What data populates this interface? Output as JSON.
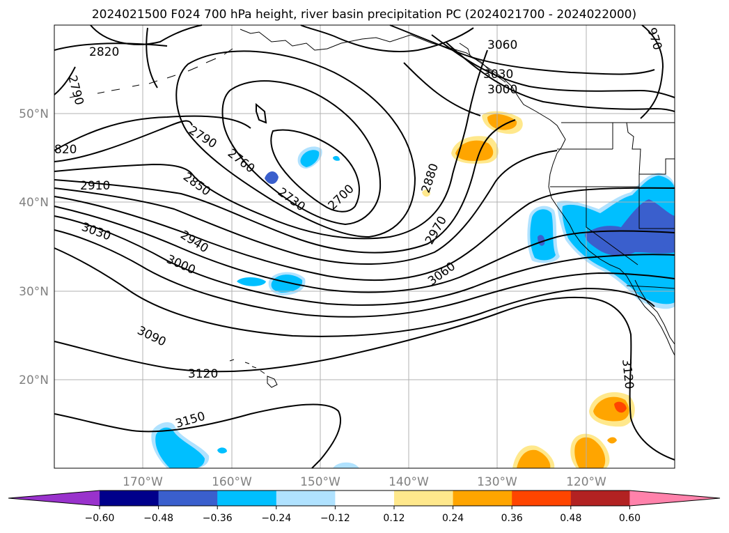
{
  "title": "2024021500 F024 700 hPa height, river basin precipitation PC (2024021700 - 2024022000)",
  "lat_labels": [
    "50°N",
    "40°N",
    "30°N",
    "20°N"
  ],
  "lon_labels": [
    "170°W",
    "160°W",
    "150°W",
    "140°W",
    "130°W",
    "120°W"
  ],
  "contour_labels": [
    "2820",
    "2790",
    "820",
    "2910",
    "3030",
    "2790",
    "2760",
    "2850",
    "2730",
    "2700",
    "2880",
    "2970",
    "2940",
    "3000",
    "3060",
    "3090",
    "3120",
    "3150",
    "3060",
    "3030",
    "3000",
    "970",
    "3120"
  ],
  "colorbar": {
    "tick_labels": [
      "−0.60",
      "−0.48",
      "−0.36",
      "−0.24",
      "−0.12",
      "0.12",
      "0.24",
      "0.36",
      "0.48",
      "0.60"
    ],
    "colors": [
      "#9932CC",
      "#00008B",
      "#3A5FCD",
      "#00BFFF",
      "#B0E2FF",
      "#FFFFFF",
      "#FFE88C",
      "#FFA500",
      "#FF4500",
      "#B22222",
      "#FF82AB"
    ]
  }
}
